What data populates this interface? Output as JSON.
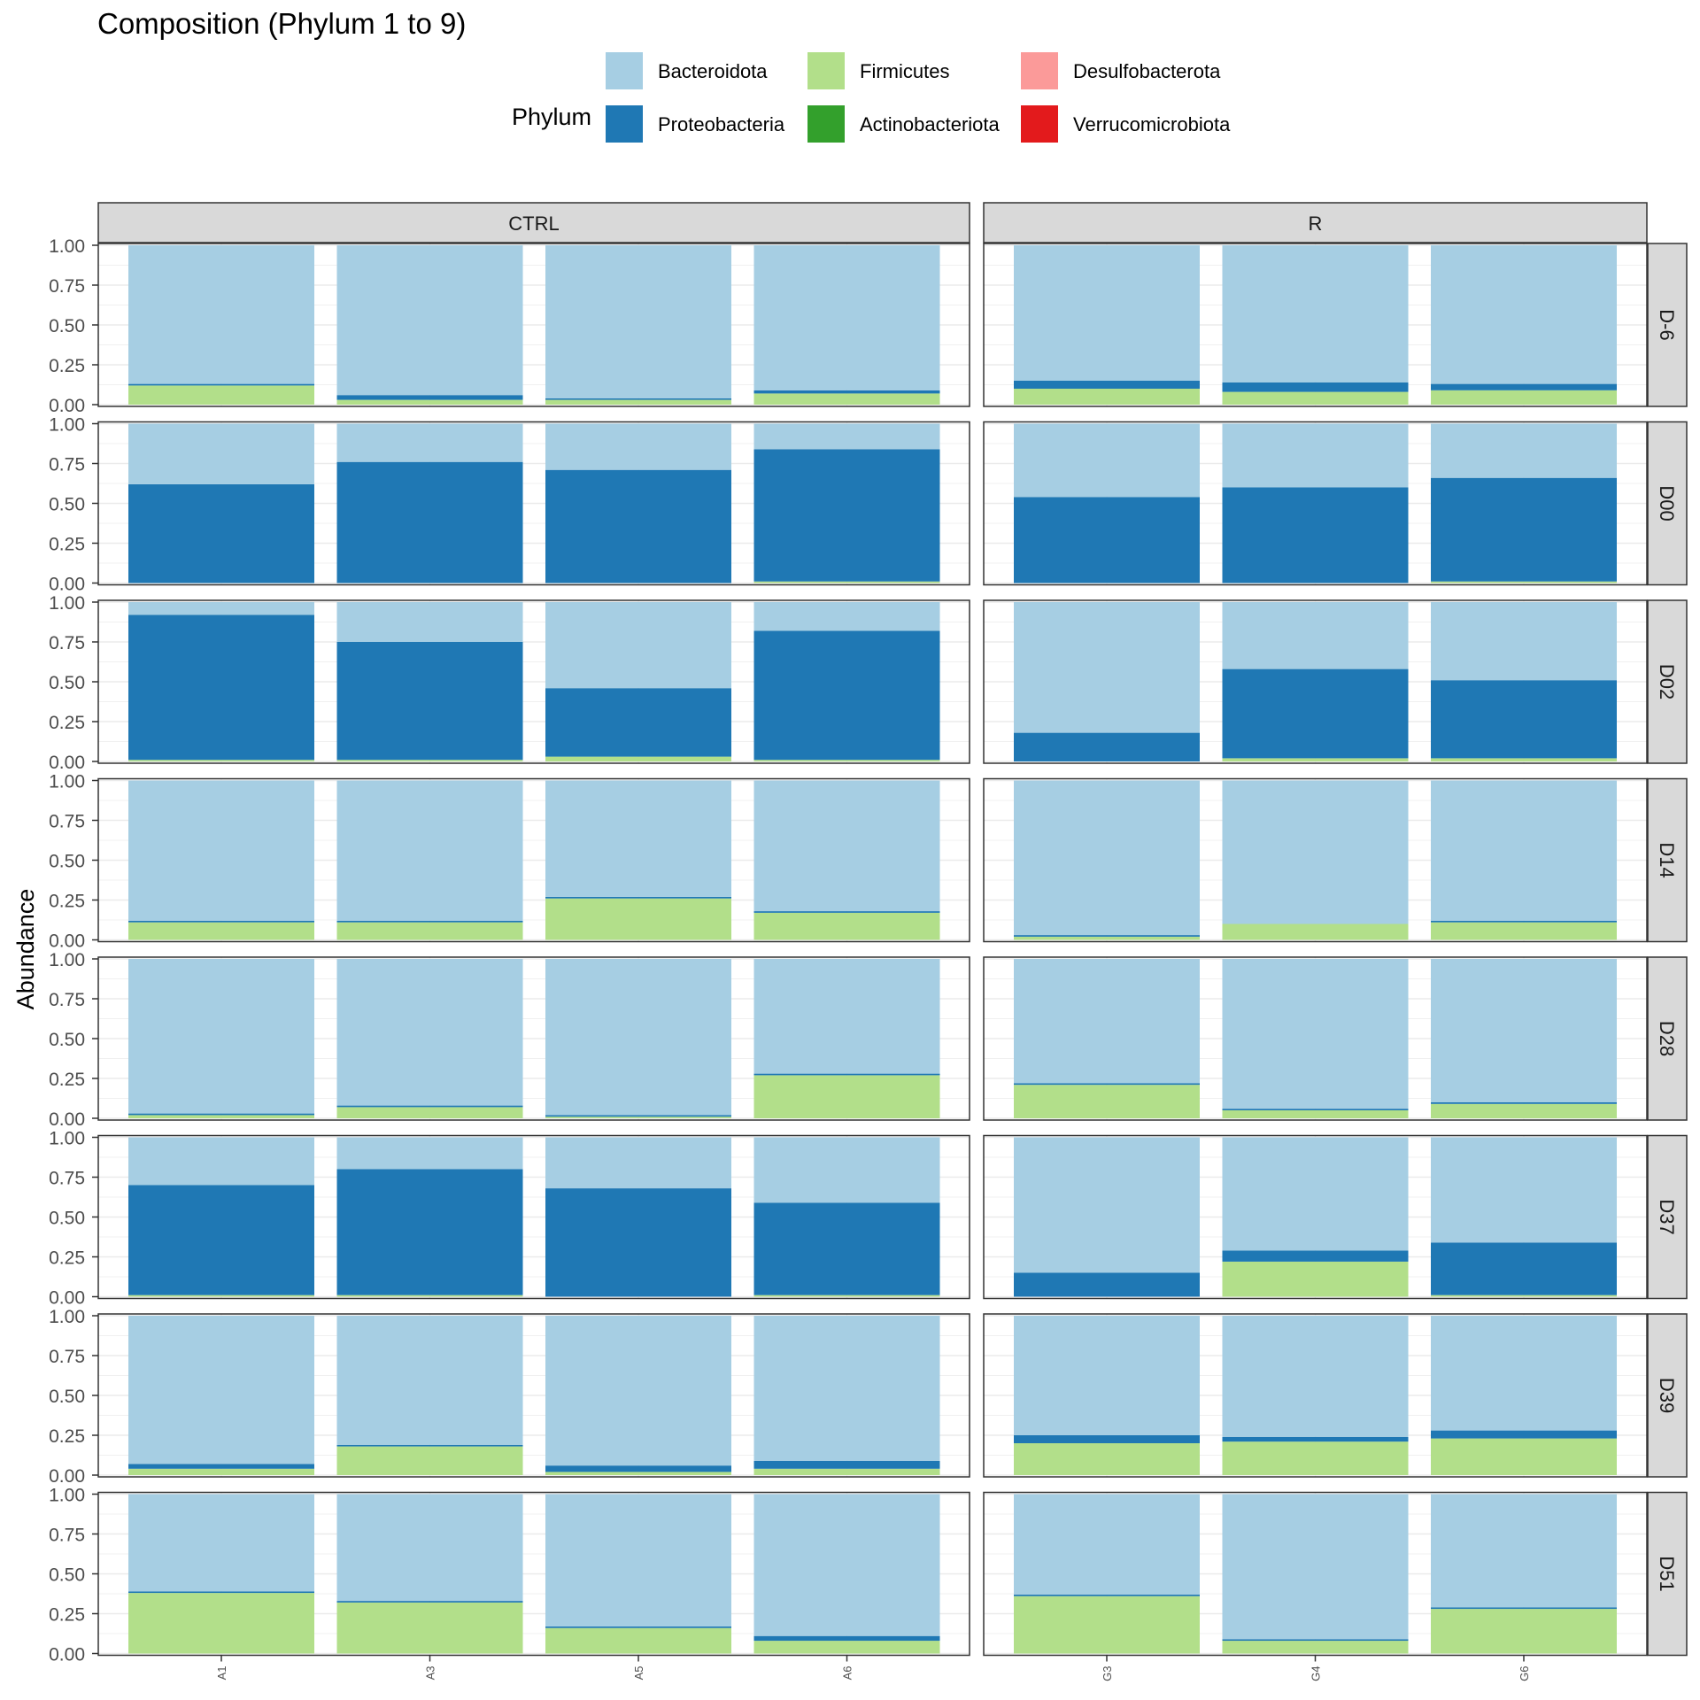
{
  "chart_data": {
    "type": "bar",
    "stacked": true,
    "faceted": true,
    "title": "Composition (Phylum 1 to 9)",
    "ylabel": "Abundance",
    "xlabel": "",
    "ylim": [
      0,
      1
    ],
    "y_ticks": [
      "0.00",
      "0.25",
      "0.50",
      "0.75",
      "1.00"
    ],
    "grid": true,
    "legend": {
      "title": "Phylum",
      "placement": "top",
      "entries": [
        {
          "name": "Bacteroidota",
          "color": "#a6cee3"
        },
        {
          "name": "Proteobacteria",
          "color": "#1f78b4"
        },
        {
          "name": "Firmicutes",
          "color": "#b2df8a"
        },
        {
          "name": "Actinobacteriota",
          "color": "#33a02c"
        },
        {
          "name": "Desulfobacterota",
          "color": "#fb9a99"
        },
        {
          "name": "Verrucomicrobiota",
          "color": "#e31a1c"
        }
      ]
    },
    "stack_order": [
      "Firmicutes",
      "Proteobacteria",
      "Bacteroidota"
    ],
    "col_facets": [
      {
        "label": "CTRL",
        "samples": [
          "A1",
          "A3",
          "A5",
          "A6"
        ]
      },
      {
        "label": "R",
        "samples": [
          "G3",
          "G4",
          "G6"
        ]
      }
    ],
    "row_facets": [
      "D-6",
      "D00",
      "D02",
      "D14",
      "D28",
      "D37",
      "D39",
      "D51"
    ],
    "data": {
      "D-6": {
        "A1": {
          "Firmicutes": 0.12,
          "Proteobacteria": 0.01,
          "Bacteroidota": 0.87
        },
        "A3": {
          "Firmicutes": 0.03,
          "Proteobacteria": 0.03,
          "Bacteroidota": 0.94
        },
        "A5": {
          "Firmicutes": 0.03,
          "Proteobacteria": 0.01,
          "Bacteroidota": 0.96
        },
        "A6": {
          "Firmicutes": 0.07,
          "Proteobacteria": 0.02,
          "Bacteroidota": 0.91
        },
        "G3": {
          "Firmicutes": 0.1,
          "Proteobacteria": 0.05,
          "Bacteroidota": 0.85
        },
        "G4": {
          "Firmicutes": 0.08,
          "Proteobacteria": 0.06,
          "Bacteroidota": 0.86
        },
        "G6": {
          "Firmicutes": 0.09,
          "Proteobacteria": 0.04,
          "Bacteroidota": 0.87
        }
      },
      "D00": {
        "A1": {
          "Firmicutes": 0.0,
          "Proteobacteria": 0.62,
          "Bacteroidota": 0.38
        },
        "A3": {
          "Firmicutes": 0.0,
          "Proteobacteria": 0.76,
          "Bacteroidota": 0.24
        },
        "A5": {
          "Firmicutes": 0.0,
          "Proteobacteria": 0.71,
          "Bacteroidota": 0.29
        },
        "A6": {
          "Firmicutes": 0.01,
          "Proteobacteria": 0.83,
          "Bacteroidota": 0.16
        },
        "G3": {
          "Firmicutes": 0.0,
          "Proteobacteria": 0.54,
          "Bacteroidota": 0.46
        },
        "G4": {
          "Firmicutes": 0.0,
          "Proteobacteria": 0.6,
          "Bacteroidota": 0.4
        },
        "G6": {
          "Firmicutes": 0.01,
          "Proteobacteria": 0.65,
          "Bacteroidota": 0.34
        }
      },
      "D02": {
        "A1": {
          "Firmicutes": 0.01,
          "Proteobacteria": 0.91,
          "Bacteroidota": 0.08
        },
        "A3": {
          "Firmicutes": 0.01,
          "Proteobacteria": 0.74,
          "Bacteroidota": 0.25
        },
        "A5": {
          "Firmicutes": 0.03,
          "Proteobacteria": 0.43,
          "Bacteroidota": 0.54
        },
        "A6": {
          "Firmicutes": 0.01,
          "Proteobacteria": 0.81,
          "Bacteroidota": 0.18
        },
        "G3": {
          "Firmicutes": 0.0,
          "Proteobacteria": 0.18,
          "Bacteroidota": 0.82
        },
        "G4": {
          "Firmicutes": 0.02,
          "Proteobacteria": 0.56,
          "Bacteroidota": 0.42
        },
        "G6": {
          "Firmicutes": 0.02,
          "Proteobacteria": 0.49,
          "Bacteroidota": 0.49
        }
      },
      "D14": {
        "A1": {
          "Firmicutes": 0.11,
          "Proteobacteria": 0.01,
          "Bacteroidota": 0.88
        },
        "A3": {
          "Firmicutes": 0.11,
          "Proteobacteria": 0.01,
          "Bacteroidota": 0.88
        },
        "A5": {
          "Firmicutes": 0.26,
          "Proteobacteria": 0.01,
          "Bacteroidota": 0.73
        },
        "A6": {
          "Firmicutes": 0.17,
          "Proteobacteria": 0.01,
          "Bacteroidota": 0.82
        },
        "G3": {
          "Firmicutes": 0.02,
          "Proteobacteria": 0.01,
          "Bacteroidota": 0.97
        },
        "G4": {
          "Firmicutes": 0.1,
          "Proteobacteria": 0.0,
          "Bacteroidota": 0.9
        },
        "G6": {
          "Firmicutes": 0.11,
          "Proteobacteria": 0.01,
          "Bacteroidota": 0.88
        }
      },
      "D28": {
        "A1": {
          "Firmicutes": 0.02,
          "Proteobacteria": 0.01,
          "Bacteroidota": 0.97
        },
        "A3": {
          "Firmicutes": 0.07,
          "Proteobacteria": 0.01,
          "Bacteroidota": 0.92
        },
        "A5": {
          "Firmicutes": 0.01,
          "Proteobacteria": 0.01,
          "Bacteroidota": 0.98
        },
        "A6": {
          "Firmicutes": 0.27,
          "Proteobacteria": 0.01,
          "Bacteroidota": 0.72
        },
        "G3": {
          "Firmicutes": 0.21,
          "Proteobacteria": 0.01,
          "Bacteroidota": 0.78
        },
        "G4": {
          "Firmicutes": 0.05,
          "Proteobacteria": 0.01,
          "Bacteroidota": 0.94
        },
        "G6": {
          "Firmicutes": 0.09,
          "Proteobacteria": 0.01,
          "Bacteroidota": 0.9
        }
      },
      "D37": {
        "A1": {
          "Firmicutes": 0.01,
          "Proteobacteria": 0.69,
          "Bacteroidota": 0.3
        },
        "A3": {
          "Firmicutes": 0.01,
          "Proteobacteria": 0.79,
          "Bacteroidota": 0.2
        },
        "A5": {
          "Firmicutes": 0.0,
          "Proteobacteria": 0.68,
          "Bacteroidota": 0.32
        },
        "A6": {
          "Firmicutes": 0.01,
          "Proteobacteria": 0.58,
          "Bacteroidota": 0.41
        },
        "G3": {
          "Firmicutes": 0.0,
          "Proteobacteria": 0.15,
          "Bacteroidota": 0.85
        },
        "G4": {
          "Firmicutes": 0.22,
          "Proteobacteria": 0.07,
          "Bacteroidota": 0.71
        },
        "G6": {
          "Firmicutes": 0.01,
          "Proteobacteria": 0.33,
          "Bacteroidota": 0.66
        }
      },
      "D39": {
        "A1": {
          "Firmicutes": 0.04,
          "Proteobacteria": 0.03,
          "Bacteroidota": 0.93
        },
        "A3": {
          "Firmicutes": 0.18,
          "Proteobacteria": 0.01,
          "Bacteroidota": 0.81
        },
        "A5": {
          "Firmicutes": 0.02,
          "Proteobacteria": 0.04,
          "Bacteroidota": 0.94
        },
        "A6": {
          "Firmicutes": 0.04,
          "Proteobacteria": 0.05,
          "Bacteroidota": 0.91
        },
        "G3": {
          "Firmicutes": 0.2,
          "Proteobacteria": 0.05,
          "Bacteroidota": 0.75
        },
        "G4": {
          "Firmicutes": 0.21,
          "Proteobacteria": 0.03,
          "Bacteroidota": 0.76
        },
        "G6": {
          "Firmicutes": 0.23,
          "Proteobacteria": 0.05,
          "Bacteroidota": 0.72
        }
      },
      "D51": {
        "A1": {
          "Firmicutes": 0.38,
          "Proteobacteria": 0.01,
          "Bacteroidota": 0.61
        },
        "A3": {
          "Firmicutes": 0.32,
          "Proteobacteria": 0.01,
          "Bacteroidota": 0.67
        },
        "A5": {
          "Firmicutes": 0.16,
          "Proteobacteria": 0.01,
          "Bacteroidota": 0.83
        },
        "A6": {
          "Firmicutes": 0.08,
          "Proteobacteria": 0.03,
          "Bacteroidota": 0.89
        },
        "G3": {
          "Firmicutes": 0.36,
          "Proteobacteria": 0.01,
          "Bacteroidota": 0.63
        },
        "G4": {
          "Firmicutes": 0.08,
          "Proteobacteria": 0.01,
          "Bacteroidota": 0.91
        },
        "G6": {
          "Firmicutes": 0.28,
          "Proteobacteria": 0.01,
          "Bacteroidota": 0.71
        }
      }
    }
  }
}
